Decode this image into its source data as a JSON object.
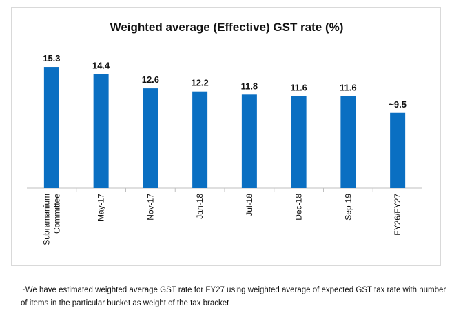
{
  "chart_data": {
    "type": "bar",
    "title": "Weighted average (Effective) GST rate (%)",
    "categories": [
      "Subramanium Committee",
      "May-17",
      "Nov-17",
      "Jan-18",
      "Jul-18",
      "Dec-18",
      "Sep-19",
      "FY26/FY27"
    ],
    "category_lines": [
      [
        "Subramanium",
        "Committee"
      ],
      [
        "May-17"
      ],
      [
        "Nov-17"
      ],
      [
        "Jan-18"
      ],
      [
        "Jul-18"
      ],
      [
        "Dec-18"
      ],
      [
        "Sep-19"
      ],
      [
        "FY26/FY27"
      ]
    ],
    "values": [
      15.3,
      14.4,
      12.6,
      12.2,
      11.8,
      11.6,
      11.6,
      9.5
    ],
    "data_labels": [
      "15.3",
      "14.4",
      "12.6",
      "12.2",
      "11.8",
      "11.6",
      "11.6",
      "~9.5"
    ],
    "xlabel": "",
    "ylabel": "",
    "ylim": [
      0,
      16
    ],
    "grid": false,
    "legend": "none",
    "bar_color": "#0A6FC2"
  },
  "footnote": "~We have estimated weighted average GST rate  for FY27 using weighted average of expected GST tax rate with number of items in the particular bucket as weight of the tax bracket"
}
